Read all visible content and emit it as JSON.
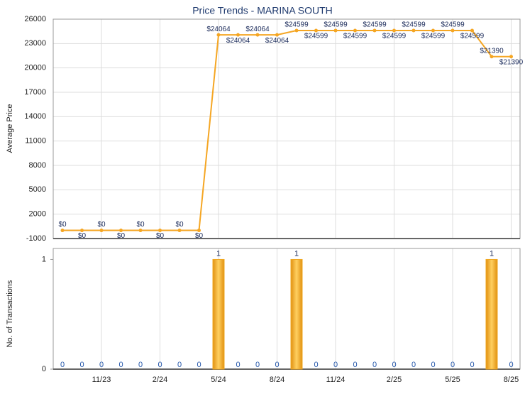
{
  "chart_data": [
    {
      "type": "line",
      "title": "Price Trends - MARINA SOUTH",
      "y_label": "Average Price",
      "color": "#f5a623",
      "values": [
        0,
        0,
        0,
        0,
        0,
        0,
        0,
        0,
        24064,
        24064,
        24064,
        24064,
        24599,
        24599,
        24599,
        24599,
        24599,
        24599,
        24599,
        24599,
        24599,
        24599,
        21390,
        21390
      ],
      "value_labels": [
        "$0",
        "$0",
        "$0",
        "$0",
        "$0",
        "$0",
        "$0",
        "$0",
        "$24064",
        "$24064",
        "$24064",
        "$24064",
        "$24599",
        "$24599",
        "$24599",
        "$24599",
        "$24599",
        "$24599",
        "$24599",
        "$24599",
        "$24599",
        "$24599",
        "$21390",
        "$21390"
      ],
      "ylim": [
        -1000,
        26000
      ],
      "yticks": [
        -1000,
        2000,
        5000,
        8000,
        11000,
        14000,
        17000,
        20000,
        23000,
        26000
      ],
      "grid": true
    },
    {
      "type": "bar",
      "y_label": "No. of Transactions",
      "color": "#f0a820",
      "categories": [
        null,
        null,
        "11/23",
        null,
        null,
        "2/24",
        null,
        null,
        "5/24",
        null,
        null,
        "8/24",
        null,
        null,
        "11/24",
        null,
        null,
        "2/25",
        null,
        null,
        "5/25",
        null,
        null,
        "8/25"
      ],
      "values": [
        0,
        0,
        0,
        0,
        0,
        0,
        0,
        0,
        1,
        0,
        0,
        0,
        1,
        0,
        0,
        0,
        0,
        0,
        0,
        0,
        0,
        0,
        1,
        0
      ],
      "ylim": [
        0,
        1.1
      ],
      "yticks": [
        0,
        1
      ],
      "grid": true
    }
  ]
}
